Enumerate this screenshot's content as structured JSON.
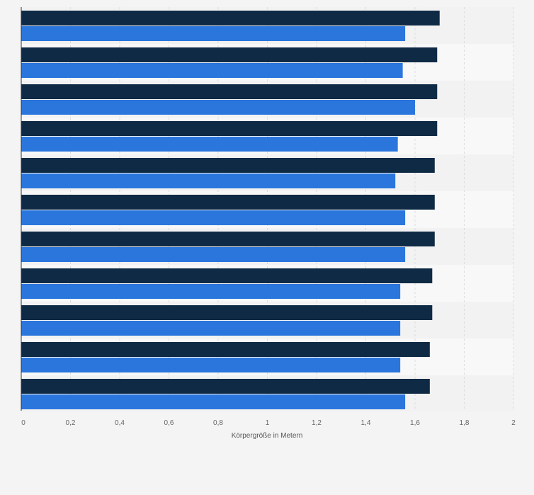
{
  "chart_data": {
    "type": "bar",
    "orientation": "horizontal",
    "title": "",
    "xlabel": "Körpergröße in Metern",
    "ylabel": "",
    "xlim": [
      0,
      2
    ],
    "x_ticks": [
      "0",
      "0,2",
      "0,4",
      "0,6",
      "0,8",
      "1",
      "1,2",
      "1,4",
      "1,6",
      "1,8",
      "2"
    ],
    "x_tick_values": [
      0,
      0.2,
      0.4,
      0.6,
      0.8,
      1.0,
      1.2,
      1.4,
      1.6,
      1.8,
      2.0
    ],
    "categories": [
      "",
      "",
      "",
      "",
      "",
      "",
      "",
      "",
      "",
      "",
      ""
    ],
    "grid": true,
    "legend": "none",
    "series": [
      {
        "color": "#0f2a45",
        "values": [
          1.7,
          1.69,
          1.69,
          1.69,
          1.68,
          1.68,
          1.68,
          1.67,
          1.67,
          1.66,
          1.66
        ]
      },
      {
        "color": "#2a76dd",
        "values": [
          1.56,
          1.55,
          1.6,
          1.53,
          1.52,
          1.56,
          1.56,
          1.54,
          1.54,
          1.54,
          1.56
        ]
      }
    ]
  }
}
